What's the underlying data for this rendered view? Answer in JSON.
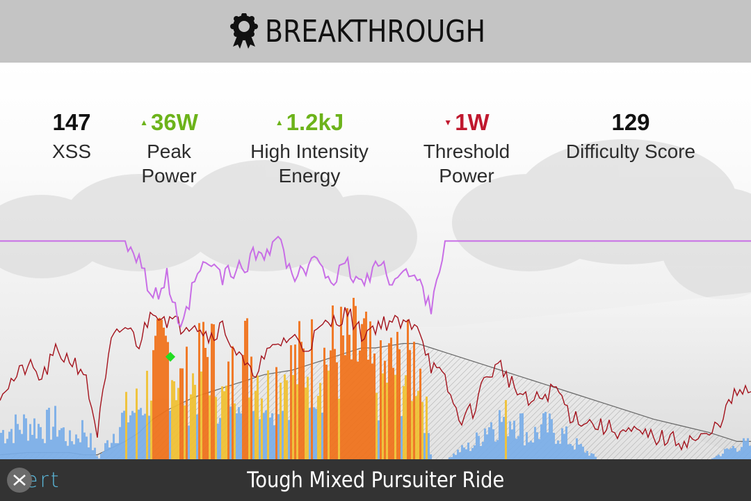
{
  "header": {
    "title": "BREAKTHROUGH",
    "icon": "award-ribbon-icon"
  },
  "stats": [
    {
      "value": "147",
      "label": "XSS",
      "trend": "none"
    },
    {
      "value": "36W",
      "label": "Peak\nPower",
      "trend": "up"
    },
    {
      "value": "1.2kJ",
      "label": "High Intensity\nEnergy",
      "trend": "up"
    },
    {
      "value": "1W",
      "label": "Threshold\nPower",
      "trend": "down"
    },
    {
      "value": "129",
      "label": "Difficulty Score",
      "trend": "none"
    }
  ],
  "footer": {
    "title": "Tough Mixed Pursuiter Ride",
    "logo_text": "ert"
  },
  "colors": {
    "up": "#6cb31a",
    "down": "#c0182e",
    "mpa_line": "#c86ee6",
    "mpa_dip": "#7a2aa8",
    "hr_line": "#a3121c",
    "altitude_line": "#666666",
    "power_low": "#7aaee8",
    "power_mid": "#f0c030",
    "power_high": "#f07018",
    "breakthrough_marker": "#22dd22"
  },
  "chart_data": {
    "type": "line",
    "title": "",
    "xlabel": "",
    "ylabel": "",
    "x": [
      0,
      40,
      60,
      80,
      100,
      120,
      140,
      160,
      180,
      200,
      220,
      240,
      260,
      280,
      300,
      320,
      340,
      360,
      380,
      400,
      420,
      440,
      460,
      480,
      500,
      520,
      540,
      560,
      580,
      600,
      620,
      640,
      660,
      680,
      700,
      720,
      740,
      760,
      780,
      800,
      820,
      860,
      900,
      940,
      980,
      1020,
      1060,
      1080
    ],
    "grid": false,
    "legend": "none",
    "series": [
      {
        "values": [
          98,
          98,
          98,
          98,
          98,
          98,
          98,
          98,
          98,
          92,
          70,
          82,
          55,
          80,
          88,
          82,
          84,
          90,
          94,
          100,
          82,
          84,
          90,
          80,
          86,
          78,
          88,
          82,
          84,
          80,
          70,
          98,
          98,
          98,
          98,
          98,
          98,
          98,
          98,
          98,
          98,
          98,
          98,
          98,
          98,
          98,
          98,
          98
        ]
      },
      {
        "values": [
          30,
          42,
          36,
          48,
          45,
          40,
          12,
          52,
          60,
          52,
          68,
          63,
          60,
          62,
          55,
          60,
          48,
          38,
          45,
          52,
          55,
          50,
          58,
          62,
          66,
          56,
          60,
          62,
          60,
          62,
          42,
          35,
          18,
          22,
          38,
          42,
          32,
          25,
          28,
          32,
          20,
          15,
          12,
          10,
          8,
          10,
          30,
          30
        ]
      },
      {
        "values": [
          2,
          3,
          3,
          3,
          3,
          2,
          2,
          5,
          8,
          12,
          18,
          22,
          25,
          28,
          30,
          32,
          34,
          36,
          38,
          39,
          40,
          42,
          44,
          46,
          48,
          50,
          50,
          51,
          52,
          52,
          50,
          48,
          46,
          44,
          42,
          40,
          38,
          36,
          34,
          32,
          30,
          26,
          22,
          18,
          15,
          12,
          8,
          8
        ]
      },
      {
        "values": [
          15,
          20,
          18,
          20,
          10,
          18,
          0,
          14,
          25,
          30,
          48,
          62,
          40,
          45,
          62,
          30,
          55,
          58,
          35,
          48,
          50,
          55,
          55,
          60,
          58,
          62,
          40,
          52,
          48,
          58,
          0,
          0,
          5,
          8,
          20,
          22,
          25,
          12,
          18,
          16,
          10,
          0,
          0,
          0,
          0,
          0,
          8,
          8
        ]
      }
    ],
    "markers": [
      {
        "x": 245,
        "y": 46,
        "label": ""
      }
    ]
  }
}
